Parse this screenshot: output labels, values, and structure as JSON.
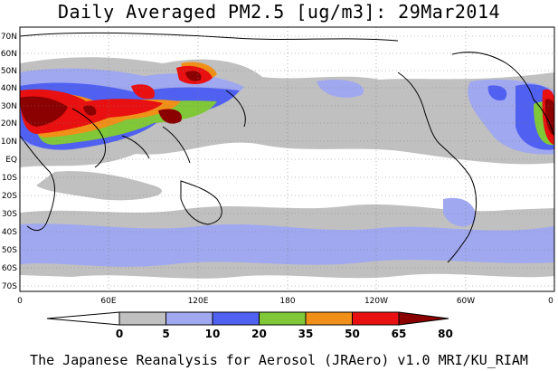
{
  "title": "Daily Averaged PM2.5 [ug/m3]: 29Mar2014",
  "footer": "The Japanese Reanalysis for Aerosol (JRAero) v1.0 MRI/KU_RIAM",
  "map": {
    "lat_labels": [
      "70N",
      "60N",
      "50N",
      "40N",
      "30N",
      "20N",
      "10N",
      "EQ",
      "10S",
      "20S",
      "30S",
      "40S",
      "50S",
      "60S",
      "70S"
    ],
    "lon_labels": [
      "0",
      "60E",
      "120E",
      "180",
      "120W",
      "60W",
      "0"
    ],
    "colorbar": {
      "levels": [
        "0",
        "5",
        "10",
        "20",
        "35",
        "50",
        "65",
        "80"
      ],
      "colors": [
        "#ffffff",
        "#c0c0c0",
        "#a0a8f0",
        "#5060f0",
        "#80c838",
        "#f09018",
        "#e81010",
        "#8b0000"
      ]
    }
  }
}
